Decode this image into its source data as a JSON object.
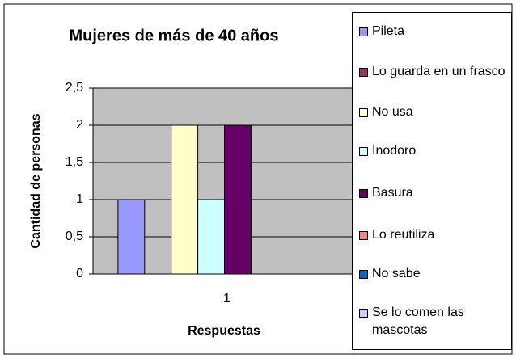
{
  "chart_data": {
    "type": "bar",
    "title": "Mujeres de más de 40 años",
    "x_label": "Respuestas",
    "y_label": "Cantidad de personas",
    "categories": [
      "1"
    ],
    "series": [
      {
        "name": "Pileta",
        "color": "#9999ff",
        "values": [
          1
        ]
      },
      {
        "name": "Lo guarda en un frasco",
        "color": "#993366",
        "values": [
          0
        ]
      },
      {
        "name": "No usa",
        "color": "#ffffcc",
        "values": [
          2
        ]
      },
      {
        "name": "Inodoro",
        "color": "#ccffff",
        "values": [
          1
        ]
      },
      {
        "name": "Basura",
        "color": "#660066",
        "values": [
          2
        ]
      },
      {
        "name": "Lo reutiliza",
        "color": "#ff8080",
        "values": [
          0
        ]
      },
      {
        "name": "No sabe",
        "color": "#0066cc",
        "values": [
          0
        ]
      },
      {
        "name": "Se lo comen las mascotas",
        "color": "#ccccff",
        "values": [
          0
        ]
      }
    ],
    "ylim": [
      0,
      2.5
    ],
    "yticks": [
      0,
      {
        "value": 0.5,
        "label": "0,5"
      },
      1,
      {
        "value": 1.5,
        "label": "1,5"
      },
      2,
      {
        "value": 2.5,
        "label": "2,5"
      }
    ],
    "grid": true,
    "legend": "right"
  }
}
